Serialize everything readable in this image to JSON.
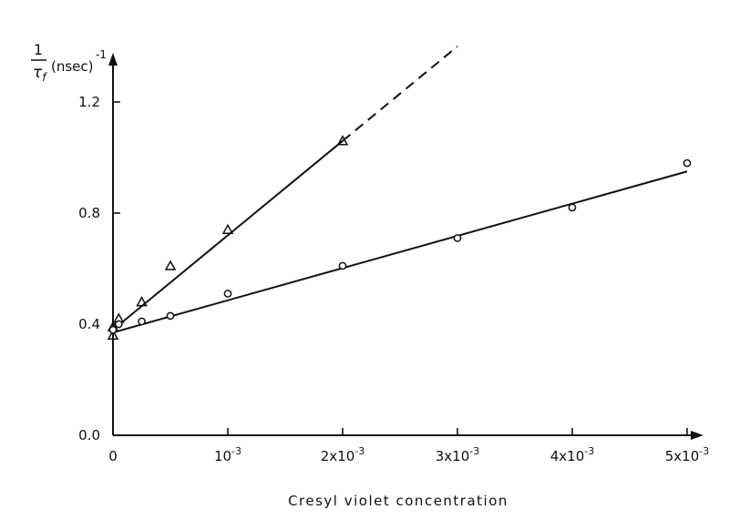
{
  "chart_data": {
    "type": "scatter",
    "title": "",
    "ylabel": {
      "numerator": "1",
      "denominator": "τ",
      "subscript": "f",
      "unit": "(nsec)",
      "exponent": "-1"
    },
    "xlabel": "Cresyl violet concentration",
    "xlim": [
      0,
      0.0052
    ],
    "ylim": [
      0,
      1.32
    ],
    "grid": false,
    "legend": "none",
    "x_ticks": [
      {
        "value": 0,
        "base": "0",
        "exp": ""
      },
      {
        "value": 0.001,
        "base": "10",
        "exp": "-3"
      },
      {
        "value": 0.002,
        "base": "2x10",
        "exp": "-3"
      },
      {
        "value": 0.003,
        "base": "3x10",
        "exp": "-3"
      },
      {
        "value": 0.004,
        "base": "4x10",
        "exp": "-3"
      },
      {
        "value": 0.005,
        "base": "5x10",
        "exp": "-3"
      }
    ],
    "y_ticks": [
      {
        "value": 0.0,
        "label": "0.0"
      },
      {
        "value": 0.4,
        "label": "0.4"
      },
      {
        "value": 0.8,
        "label": "0.8"
      },
      {
        "value": 1.2,
        "label": "1.2"
      }
    ],
    "series": [
      {
        "marker": "triangle",
        "points": [
          {
            "x": 0.0,
            "y": 0.36
          },
          {
            "x": 0.0,
            "y": 0.39
          },
          {
            "x": 5e-05,
            "y": 0.42
          },
          {
            "x": 0.00025,
            "y": 0.48
          },
          {
            "x": 0.0005,
            "y": 0.61
          },
          {
            "x": 0.001,
            "y": 0.74
          },
          {
            "x": 0.002,
            "y": 1.06
          }
        ],
        "fit": {
          "x1": 0.0,
          "y1": 0.38,
          "x2": 0.002,
          "y2": 1.06
        },
        "extrapolation": {
          "x1": 0.002,
          "y1": 1.06,
          "x2": 0.003,
          "y2": 1.4
        }
      },
      {
        "marker": "circle",
        "points": [
          {
            "x": 0.0,
            "y": 0.38
          },
          {
            "x": 5e-05,
            "y": 0.4
          },
          {
            "x": 0.00025,
            "y": 0.41
          },
          {
            "x": 0.0005,
            "y": 0.43
          },
          {
            "x": 0.001,
            "y": 0.51
          },
          {
            "x": 0.002,
            "y": 0.61
          },
          {
            "x": 0.003,
            "y": 0.71
          },
          {
            "x": 0.004,
            "y": 0.82
          },
          {
            "x": 0.005,
            "y": 0.98
          }
        ],
        "fit": {
          "x1": 0.0,
          "y1": 0.37,
          "x2": 0.005,
          "y2": 0.95
        }
      }
    ]
  }
}
